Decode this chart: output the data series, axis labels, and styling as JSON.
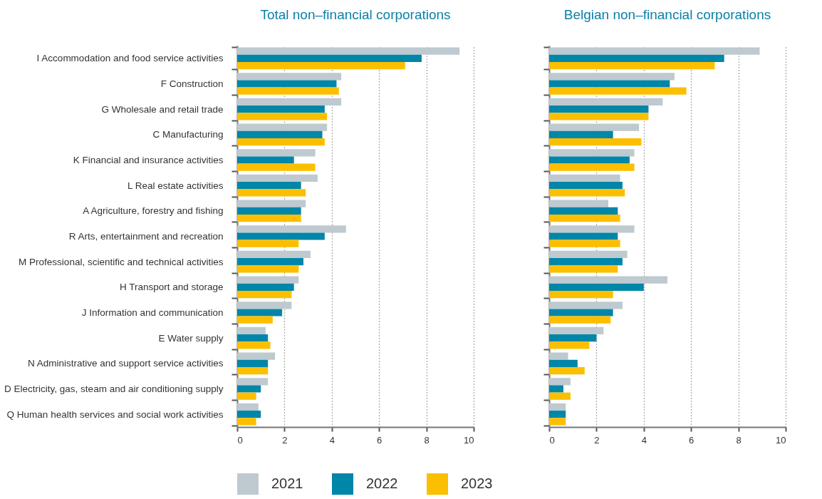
{
  "chart_data": [
    {
      "type": "bar",
      "orientation": "horizontal",
      "title": "Total non–financial corporations",
      "categories": [
        "I Accommodation and food service activities",
        "F Construction",
        "G Wholesale and retail trade",
        "C Manufacturing",
        "K Financial and insurance activities",
        "L Real estate activities",
        "A Agriculture, forestry and fishing",
        "R Arts, entertainment and recreation",
        "M Professional, scientific and technical activities",
        "H Transport and storage",
        "J Information and communication",
        "E Water supply",
        "N Administrative and support service activities",
        "D Electricity, gas, steam and air conditioning supply",
        "Q Human health services and social work activities"
      ],
      "series": [
        {
          "name": "2021",
          "color": "#bec9d0",
          "values": [
            9.4,
            4.4,
            4.4,
            3.8,
            3.3,
            3.4,
            2.9,
            4.6,
            3.1,
            2.6,
            2.3,
            1.2,
            1.6,
            1.3,
            0.9
          ]
        },
        {
          "name": "2022",
          "color": "#0086a8",
          "values": [
            7.8,
            4.2,
            3.7,
            3.6,
            2.4,
            2.7,
            2.7,
            3.7,
            2.8,
            2.4,
            1.9,
            1.3,
            1.3,
            1.0,
            1.0
          ]
        },
        {
          "name": "2023",
          "color": "#fbbf00",
          "values": [
            7.1,
            4.3,
            3.8,
            3.7,
            3.3,
            2.9,
            2.7,
            2.6,
            2.6,
            2.3,
            1.5,
            1.4,
            1.3,
            0.8,
            0.8
          ]
        }
      ],
      "xlim": [
        0,
        10
      ],
      "xticks": [
        0,
        2,
        4,
        6,
        8,
        10
      ],
      "grid": "x",
      "legend": "bottom"
    },
    {
      "type": "bar",
      "orientation": "horizontal",
      "title": "Belgian non–financial corporations",
      "categories": [
        null,
        null,
        null,
        null,
        null,
        null,
        null,
        null,
        null,
        null,
        null,
        null,
        null,
        null,
        null
      ],
      "series": [
        {
          "name": "2021",
          "color": "#bec9d0",
          "values": [
            8.9,
            5.3,
            4.8,
            3.8,
            3.6,
            3.0,
            2.5,
            3.6,
            3.3,
            5.0,
            3.1,
            2.3,
            0.8,
            0.9,
            0.7
          ]
        },
        {
          "name": "2022",
          "color": "#0086a8",
          "values": [
            7.4,
            5.1,
            4.2,
            2.7,
            3.4,
            3.1,
            2.9,
            2.9,
            3.1,
            4.0,
            2.7,
            2.0,
            1.2,
            0.6,
            0.7
          ]
        },
        {
          "name": "2023",
          "color": "#fbbf00",
          "values": [
            7.0,
            5.8,
            4.2,
            3.9,
            3.6,
            3.2,
            3.0,
            3.0,
            2.9,
            2.7,
            2.6,
            1.7,
            1.5,
            0.9,
            0.7
          ]
        }
      ],
      "xlim": [
        0,
        10
      ],
      "xticks": [
        0,
        2,
        4,
        6,
        8,
        10
      ],
      "grid": "x",
      "legend": "bottom"
    }
  ]
}
